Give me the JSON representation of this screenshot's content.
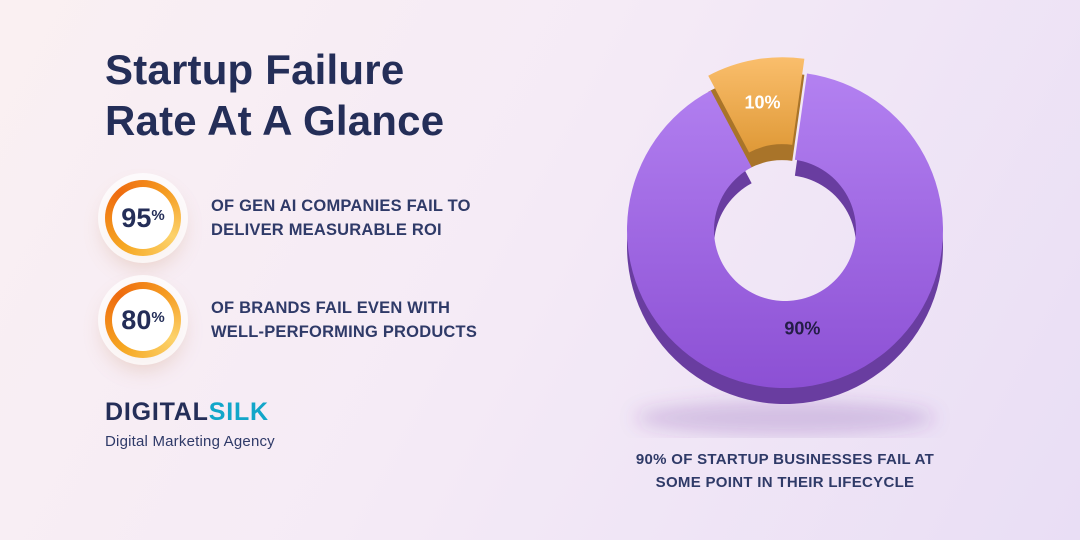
{
  "title": {
    "line1": "Startup Failure",
    "line2": "Rate At A Glance"
  },
  "stats": [
    {
      "value": "95",
      "unit": "%",
      "line1": "OF GEN AI COMPANIES FAIL TO",
      "line2": "DELIVER MEASURABLE ROI"
    },
    {
      "value": "80",
      "unit": "%",
      "line1": "OF BRANDS FAIL EVEN WITH",
      "line2": "WELL-PERFORMING PRODUCTS"
    }
  ],
  "logo": {
    "word1": "DIGITAL",
    "word2": "SILK",
    "tagline": "Digital Marketing Agency"
  },
  "chart_data": {
    "type": "pie",
    "subtype": "3d-exploded-donut",
    "title": "Startup Failure Rate At A Glance",
    "labels": [
      "90%",
      "10%"
    ],
    "values": [
      90,
      10
    ],
    "colors": [
      "#9b59ec",
      "#f8aa3d"
    ],
    "label_colors": [
      "#241d47",
      "#ffffff"
    ],
    "exploded": [
      false,
      true
    ],
    "start_angle_deg": 8,
    "legend_position": "none",
    "caption_line1": "90% OF STARTUP BUSINESSES FAIL AT",
    "caption_line2": "SOME POINT IN THEIR LIFECYCLE"
  },
  "colors": {
    "background_start": "#faf0f2",
    "background_end": "#e9def5",
    "navy": "#242e58",
    "accent_purple": "#9b59ec",
    "accent_orange": "#f8aa3d",
    "ring_orange": "#ee6b0f",
    "logo_teal": "#12a6c9"
  }
}
